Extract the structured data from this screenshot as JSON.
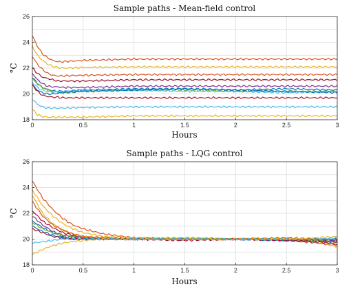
{
  "chart_data": [
    {
      "type": "line",
      "title": "Sample paths - Mean-field control",
      "xlabel": "Hours",
      "ylabel": "°C",
      "xlim": [
        0,
        3
      ],
      "ylim": [
        18,
        26
      ],
      "xticks": [
        "0",
        "0.5",
        "1",
        "1.5",
        "2",
        "2.5",
        "3"
      ],
      "yticks": [
        "18",
        "20",
        "22",
        "24",
        "26"
      ],
      "grid": true,
      "x": [
        0,
        0.05,
        0.1,
        0.15,
        0.2,
        0.25,
        0.3,
        0.5,
        1,
        1.5,
        2,
        2.5,
        3
      ],
      "series": [
        {
          "color": "#d95319",
          "values": [
            24.5,
            23.7,
            23.1,
            22.8,
            22.6,
            22.5,
            22.5,
            22.6,
            22.7,
            22.7,
            22.7,
            22.7,
            22.7
          ]
        },
        {
          "color": "#edb120",
          "values": [
            23.7,
            23.0,
            22.6,
            22.3,
            22.15,
            22.05,
            22.0,
            22.05,
            22.1,
            22.1,
            22.1,
            22.1,
            22.1
          ]
        },
        {
          "color": "#d95319",
          "values": [
            22.9,
            22.3,
            21.9,
            21.6,
            21.45,
            21.4,
            21.4,
            21.45,
            21.5,
            21.5,
            21.5,
            21.5,
            21.5
          ]
        },
        {
          "color": "#a2142f",
          "values": [
            22.0,
            21.6,
            21.3,
            21.2,
            21.1,
            21.0,
            21.0,
            21.0,
            21.1,
            21.1,
            21.1,
            21.1,
            21.1
          ]
        },
        {
          "color": "#7e2f8e",
          "values": [
            21.6,
            21.1,
            20.8,
            20.6,
            20.55,
            20.55,
            20.5,
            20.5,
            20.6,
            20.6,
            20.6,
            20.6,
            20.6
          ]
        },
        {
          "color": "#0072bd",
          "values": [
            21.3,
            20.8,
            20.5,
            20.35,
            20.25,
            20.2,
            20.2,
            20.3,
            20.4,
            20.4,
            20.3,
            20.4,
            20.3
          ]
        },
        {
          "color": "#77ac30",
          "values": [
            21.2,
            20.8,
            20.5,
            20.3,
            20.2,
            20.15,
            20.1,
            20.2,
            20.3,
            20.3,
            20.2,
            20.2,
            20.2
          ]
        },
        {
          "color": "#4dbeee",
          "values": [
            20.9,
            20.5,
            20.3,
            20.2,
            20.15,
            20.15,
            20.2,
            20.3,
            20.3,
            20.2,
            20.2,
            20.1,
            20.2
          ]
        },
        {
          "color": "#0072bd",
          "values": [
            20.7,
            20.3,
            20.1,
            20.0,
            20.0,
            20.05,
            20.1,
            20.2,
            20.3,
            20.4,
            20.3,
            20.2,
            20.1
          ]
        },
        {
          "color": "#a2142f",
          "values": [
            20.7,
            20.2,
            19.9,
            19.8,
            19.75,
            19.75,
            19.7,
            19.7,
            19.7,
            19.7,
            19.7,
            19.7,
            19.7
          ]
        },
        {
          "color": "#4dbeee",
          "values": [
            19.6,
            19.2,
            19.0,
            18.9,
            18.9,
            18.9,
            18.9,
            18.95,
            19.0,
            19.0,
            19.0,
            19.0,
            19.0
          ]
        },
        {
          "color": "#edb120",
          "values": [
            18.8,
            18.4,
            18.25,
            18.2,
            18.2,
            18.2,
            18.2,
            18.2,
            18.3,
            18.3,
            18.3,
            18.3,
            18.3
          ]
        }
      ]
    },
    {
      "type": "line",
      "title": "Sample paths - LQG control",
      "xlabel": "Hours",
      "ylabel": "°C",
      "xlim": [
        0,
        3
      ],
      "ylim": [
        18,
        26
      ],
      "xticks": [
        "0",
        "0.5",
        "1",
        "1.5",
        "2",
        "2.5",
        "3"
      ],
      "yticks": [
        "18",
        "20",
        "22",
        "24",
        "26"
      ],
      "grid": true,
      "x": [
        0,
        0.1,
        0.2,
        0.3,
        0.4,
        0.5,
        0.7,
        1,
        1.5,
        2,
        2.5,
        2.8,
        3
      ],
      "series": [
        {
          "color": "#d95319",
          "values": [
            24.5,
            23.2,
            22.3,
            21.6,
            21.1,
            20.8,
            20.4,
            20.1,
            20.0,
            20.0,
            19.9,
            19.7,
            19.5
          ]
        },
        {
          "color": "#edb120",
          "values": [
            23.8,
            22.6,
            21.8,
            21.2,
            20.8,
            20.5,
            20.2,
            20.1,
            20.0,
            20.0,
            20.0,
            19.8,
            19.4
          ]
        },
        {
          "color": "#edb120",
          "values": [
            23.4,
            22.0,
            21.2,
            20.7,
            20.4,
            20.2,
            20.1,
            20.0,
            20.0,
            20.0,
            20.0,
            19.9,
            19.7
          ]
        },
        {
          "color": "#d95319",
          "values": [
            22.9,
            21.8,
            21.1,
            20.7,
            20.4,
            20.2,
            20.1,
            20.0,
            20.0,
            20.0,
            20.1,
            20.0,
            19.9
          ]
        },
        {
          "color": "#a2142f",
          "values": [
            22.2,
            21.4,
            20.9,
            20.5,
            20.3,
            20.1,
            20.0,
            20.0,
            20.0,
            20.0,
            20.0,
            19.9,
            19.8
          ]
        },
        {
          "color": "#7e2f8e",
          "values": [
            21.8,
            21.1,
            20.6,
            20.3,
            20.2,
            20.1,
            20.0,
            20.0,
            20.0,
            20.0,
            20.0,
            19.9,
            19.9
          ]
        },
        {
          "color": "#0072bd",
          "values": [
            21.4,
            20.9,
            20.5,
            20.2,
            20.1,
            20.0,
            20.0,
            20.0,
            20.0,
            20.0,
            19.9,
            19.8,
            19.8
          ]
        },
        {
          "color": "#77ac30",
          "values": [
            21.3,
            20.8,
            20.5,
            20.3,
            20.2,
            20.1,
            20.0,
            20.0,
            20.1,
            20.0,
            20.0,
            19.9,
            20.0
          ]
        },
        {
          "color": "#0072bd",
          "values": [
            21.0,
            20.6,
            20.3,
            20.1,
            20.0,
            20.0,
            20.0,
            20.0,
            20.0,
            20.0,
            19.9,
            20.0,
            20.0
          ]
        },
        {
          "color": "#a2142f",
          "values": [
            20.8,
            20.5,
            20.2,
            20.1,
            20.0,
            20.0,
            20.0,
            20.0,
            19.9,
            20.0,
            19.9,
            19.8,
            19.6
          ]
        },
        {
          "color": "#4dbeee",
          "values": [
            19.7,
            19.8,
            19.9,
            20.0,
            20.0,
            20.0,
            20.0,
            20.0,
            20.0,
            20.0,
            20.0,
            20.0,
            20.1
          ]
        },
        {
          "color": "#edb120",
          "values": [
            18.8,
            19.2,
            19.5,
            19.7,
            19.8,
            19.9,
            20.0,
            20.0,
            20.0,
            20.0,
            20.0,
            20.1,
            20.2
          ]
        }
      ]
    }
  ]
}
